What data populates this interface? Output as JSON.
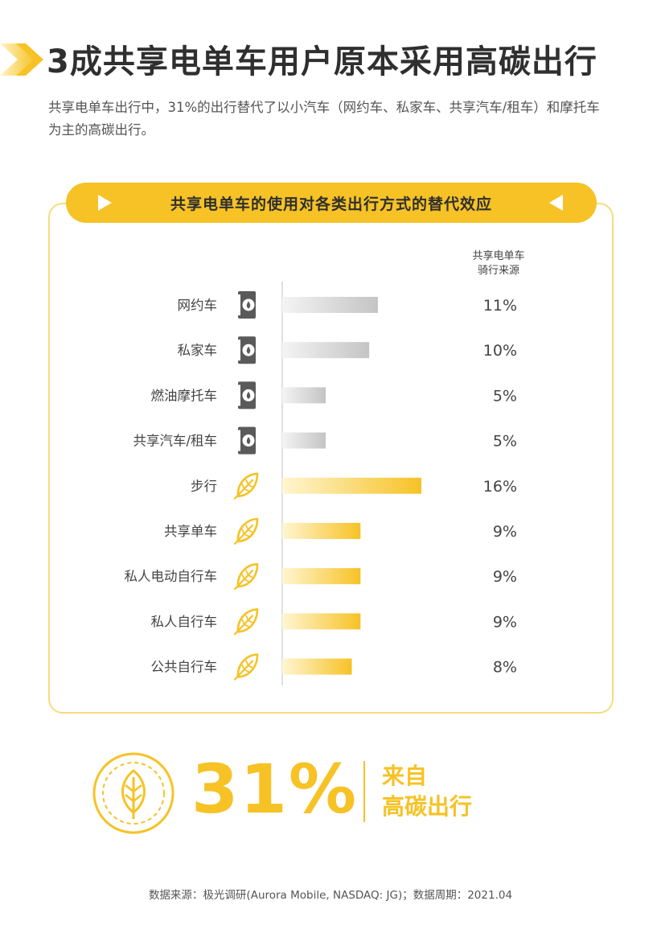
{
  "header": {
    "title": "3成共享电单车用户原本采用高碳出行",
    "subtitle": "共享电单车出行中，31%的出行替代了以小汽车（网约车、私家车、共享汽车/租车）和摩托车为主的高碳出行。"
  },
  "colors": {
    "accent": "#f6c225",
    "grey_bar": "#cfcfcf",
    "dark_icon": "#555555"
  },
  "chart_data": {
    "type": "bar",
    "orientation": "horizontal",
    "title": "共享电单车的使用对各类出行方式的替代效应",
    "value_header": "共享电单车\n骑行来源",
    "categories": [
      "网约车",
      "私家车",
      "燃油摩托车",
      "共享汽车/租车",
      "步行",
      "共享单车",
      "私人电动自行车",
      "私人自行车",
      "公共自行车"
    ],
    "values": [
      11,
      10,
      5,
      5,
      16,
      9,
      9,
      9,
      8
    ],
    "value_labels": [
      "11%",
      "10%",
      "5%",
      "5%",
      "16%",
      "9%",
      "9%",
      "9%",
      "8%"
    ],
    "groups": [
      "high-carbon",
      "high-carbon",
      "high-carbon",
      "high-carbon",
      "low-carbon",
      "low-carbon",
      "low-carbon",
      "low-carbon",
      "low-carbon"
    ],
    "icons": [
      "fuel-can-icon",
      "fuel-can-icon",
      "fuel-can-icon",
      "fuel-can-icon",
      "leaf-icon",
      "leaf-icon",
      "leaf-icon",
      "leaf-icon",
      "leaf-icon"
    ],
    "xlim": [
      0,
      16
    ]
  },
  "summary": {
    "value": "31%",
    "label_line1": "来自",
    "label_line2": "高碳出行",
    "icon": "leaf-badge-icon"
  },
  "footer": {
    "source": "数据来源：极光调研(Aurora Mobile, NASDAQ: JG)；数据周期：2021.04"
  }
}
